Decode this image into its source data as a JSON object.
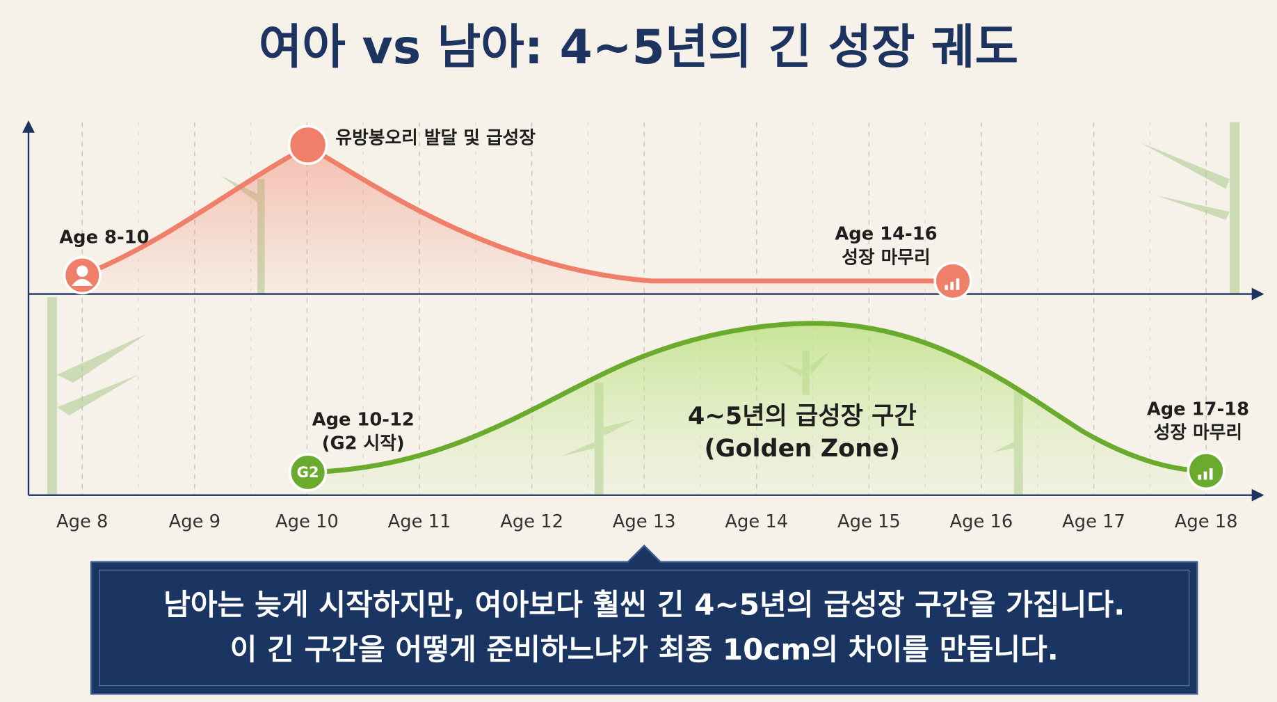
{
  "title": "여아 vs 남아: 4~5년의 긴 성장 궤도",
  "axis": {
    "ticks": [
      "Age 8",
      "Age 9",
      "Age 10",
      "Age 11",
      "Age 12",
      "Age 13",
      "Age 14",
      "Age 15",
      "Age 16",
      "Age 17",
      "Age 18"
    ]
  },
  "girls": {
    "start": "Age 8-10",
    "peak": "유방봉오리 발달 및 급성장",
    "end_line1": "Age 14-16",
    "end_line2": "성장 마무리"
  },
  "boys": {
    "start_line1": "Age 10-12",
    "start_line2": "(G2 시작)",
    "badge": "G2",
    "zone_line1": "4~5년의 급성장 구간",
    "zone_line2": "(Golden Zone)",
    "end_line1": "Age 17-18",
    "end_line2": "성장 마무리"
  },
  "caption": {
    "line1": "남아는 늦게 시작하지만, 여아보다 훨씬 긴 4~5년의 급성장 구간을 가집니다.",
    "line2": "이 긴 구간을 어떻게 준비하느냐가 최종 10cm의 차이를 만듭니다."
  }
}
